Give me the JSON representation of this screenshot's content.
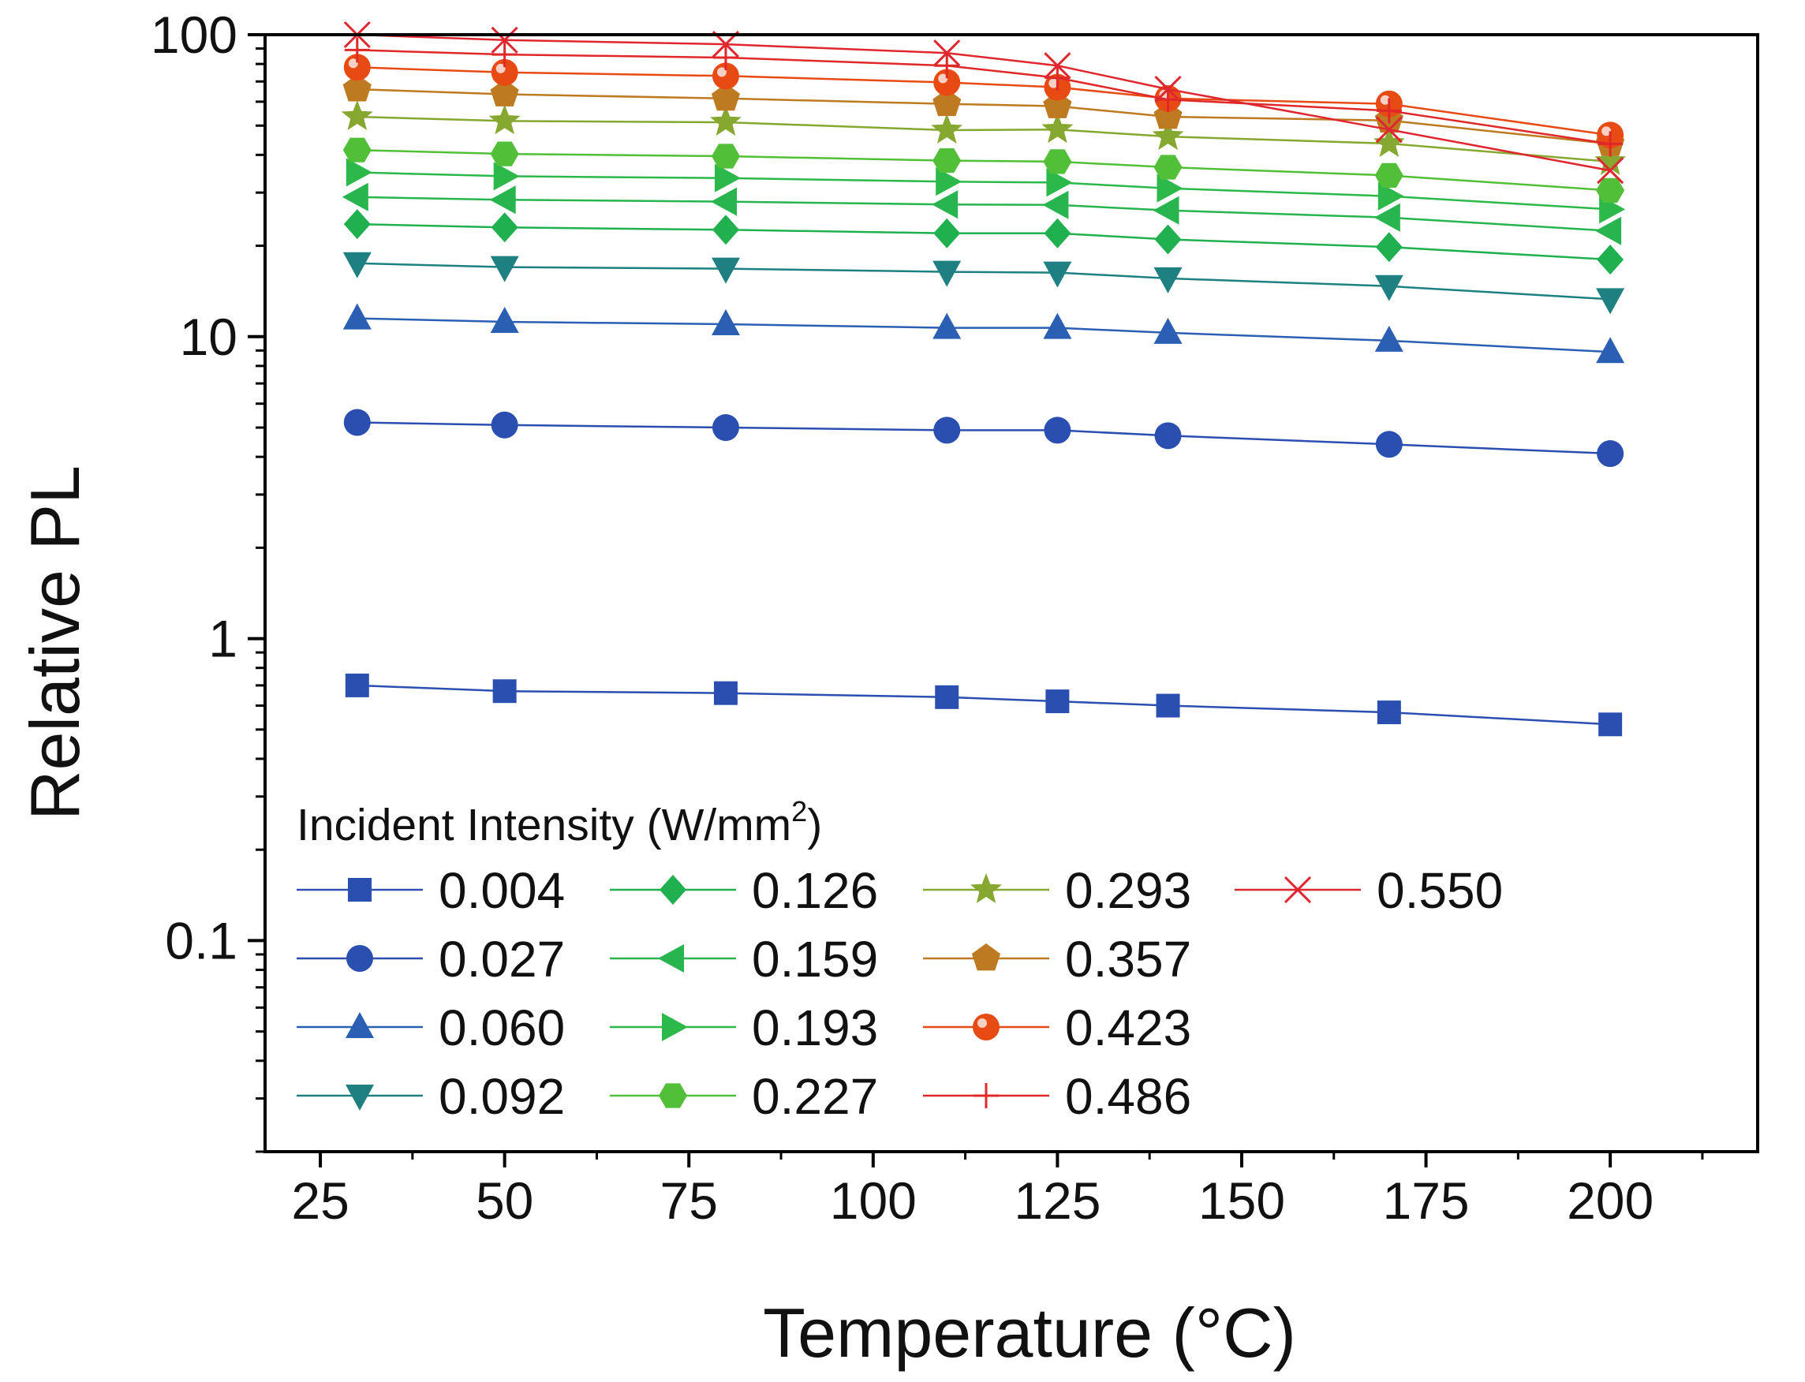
{
  "chart_data": {
    "type": "line",
    "title": "",
    "xlabel": "Temperature (°C)",
    "ylabel": "Relative PL",
    "xscale": "linear",
    "yscale": "log",
    "xlim": [
      17.5,
      220
    ],
    "ylim": [
      0.02,
      100
    ],
    "x_ticks": [
      25,
      50,
      75,
      100,
      125,
      150,
      175,
      200
    ],
    "y_ticks": [
      0.1,
      1,
      10,
      100
    ],
    "x_tick_labels": [
      "25",
      "50",
      "75",
      "100",
      "125",
      "150",
      "175",
      "200"
    ],
    "y_tick_labels": [
      "0.1",
      "1",
      "10",
      "100"
    ],
    "legend_title": "Incident Intensity (W/mm",
    "legend_title_superscript": "2",
    "legend_title_end": ")",
    "legend_position": "bottom-left",
    "grid": false,
    "x": [
      30,
      50,
      80,
      110,
      125,
      140,
      170,
      200
    ],
    "series": [
      {
        "name": "0.004",
        "marker": "square",
        "color": "#2b4fb0",
        "values": [
          0.7,
          0.67,
          0.66,
          0.64,
          0.62,
          0.6,
          0.57,
          0.52
        ]
      },
      {
        "name": "0.027",
        "marker": "circle",
        "color": "#2b4fb0",
        "values": [
          5.2,
          5.1,
          5.0,
          4.9,
          4.9,
          4.7,
          4.4,
          4.1
        ]
      },
      {
        "name": "0.060",
        "marker": "triangle-up",
        "color": "#2b5fb4",
        "values": [
          11.5,
          11.2,
          11.0,
          10.7,
          10.7,
          10.3,
          9.7,
          8.9
        ]
      },
      {
        "name": "0.092",
        "marker": "triangle-down",
        "color": "#1e8080",
        "values": [
          17.5,
          17.0,
          16.8,
          16.4,
          16.3,
          15.6,
          14.7,
          13.3
        ]
      },
      {
        "name": "0.126",
        "marker": "diamond",
        "color": "#21b04f",
        "values": [
          23.6,
          23.0,
          22.6,
          22.0,
          22.0,
          21.0,
          19.8,
          18.0
        ]
      },
      {
        "name": "0.159",
        "marker": "triangle-left",
        "color": "#28b44e",
        "values": [
          29.0,
          28.4,
          28.0,
          27.4,
          27.3,
          26.2,
          24.8,
          22.4
        ]
      },
      {
        "name": "0.193",
        "marker": "triangle-right",
        "color": "#2db84a",
        "values": [
          35.0,
          34.0,
          33.5,
          32.6,
          32.4,
          31.0,
          29.2,
          26.4
        ]
      },
      {
        "name": "0.227",
        "marker": "hexagon",
        "color": "#52bf38",
        "values": [
          41.5,
          40.3,
          39.6,
          38.3,
          38.0,
          36.4,
          34.2,
          30.5
        ]
      },
      {
        "name": "0.293",
        "marker": "star",
        "color": "#86a830",
        "values": [
          53.5,
          51.8,
          51.3,
          48.3,
          48.5,
          46.0,
          43.6,
          38.0
        ]
      },
      {
        "name": "0.357",
        "marker": "pentagon",
        "color": "#bd7a20",
        "values": [
          66.0,
          63.5,
          61.5,
          59.0,
          58.0,
          53.5,
          52.0,
          43.5
        ]
      },
      {
        "name": "0.423",
        "marker": "ball",
        "color": "#e84a14",
        "values": [
          78.0,
          75.0,
          73.0,
          69.5,
          67.0,
          61.5,
          59.0,
          46.5
        ]
      },
      {
        "name": "0.486",
        "marker": "plus",
        "color": "#e02828",
        "values": [
          89.0,
          86.0,
          84.0,
          79.0,
          72.0,
          61.0,
          56.0,
          43.5
        ]
      },
      {
        "name": "0.550",
        "marker": "cross",
        "color": "#e0262e",
        "values": [
          100.0,
          96.0,
          93.0,
          87.0,
          79.0,
          66.0,
          48.5,
          35.5
        ]
      }
    ]
  }
}
